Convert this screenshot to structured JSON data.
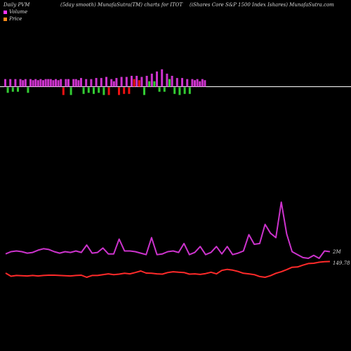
{
  "header": {
    "left": "Daily PVM",
    "smooth": "(5day smooth) MunafaSutra(TM) charts for ITOT",
    "desc": "(iShares Core S&P 1500 Index Ishares) MunafaSutra.com"
  },
  "legend": [
    {
      "label": "Volume",
      "color": "#ff33ff"
    },
    {
      "label": "Price",
      "color": "#ff8c1a"
    }
  ],
  "colors": {
    "volume_line": "#cc33cc",
    "price_line": "#ff2a2a",
    "bar_up": "#cc33cc",
    "bar_down": "#33cc33",
    "bar_red": "#ee1111",
    "baseline": "#ffffff"
  },
  "chart_data": [
    {
      "type": "bar",
      "title": "Daily PVM",
      "series": [
        {
          "values": [
            7,
            -5,
            7,
            -4,
            7,
            -4,
            7,
            6,
            7,
            -5,
            7,
            6,
            7,
            6,
            7,
            6,
            7,
            7,
            7,
            6,
            7,
            6,
            7,
            -7,
            7,
            7,
            -7,
            7,
            7,
            6,
            8,
            -6,
            7,
            -5,
            7,
            -6,
            8,
            -5,
            8,
            -7,
            9,
            -7,
            7,
            5,
            8,
            -7,
            9,
            -6,
            9,
            -6,
            10,
            7,
            10,
            6,
            9,
            -7,
            10,
            5,
            12,
            5,
            14,
            -4,
            16,
            -4,
            12,
            7,
            10,
            -6,
            8,
            -7,
            8,
            -6,
            7,
            -6,
            7,
            6,
            7,
            5,
            7,
            6
          ],
          "sign_colors": [
            "up",
            "down",
            "up",
            "down",
            "up",
            "down",
            "up",
            "up",
            "up",
            "down",
            "up",
            "up",
            "up",
            "up",
            "up",
            "up",
            "up",
            "up",
            "up",
            "up",
            "up",
            "up",
            "up",
            "red",
            "up",
            "up",
            "down",
            "up",
            "up",
            "up",
            "up",
            "down",
            "up",
            "down",
            "up",
            "down",
            "up",
            "down",
            "up",
            "down",
            "up",
            "red",
            "up",
            "up",
            "up",
            "red",
            "up",
            "red",
            "up",
            "red",
            "up",
            "red",
            "up",
            "red",
            "up",
            "down",
            "up",
            "down",
            "up",
            "down",
            "up",
            "down",
            "up",
            "down",
            "up",
            "down",
            "up",
            "down",
            "up",
            "down",
            "up",
            "down",
            "up",
            "down",
            "up",
            "up",
            "up",
            "up",
            "up",
            "up"
          ]
        }
      ]
    },
    {
      "type": "line",
      "series": [
        {
          "name": "Volume",
          "end_label": "2M",
          "values": [
            1.6,
            1.9,
            2.0,
            1.9,
            1.7,
            1.8,
            2.1,
            2.3,
            2.2,
            1.9,
            1.7,
            1.9,
            1.8,
            2.0,
            1.8,
            2.8,
            1.7,
            1.8,
            2.4,
            1.6,
            1.6,
            3.6,
            2.0,
            2.0,
            1.9,
            1.7,
            1.5,
            3.8,
            1.5,
            1.6,
            1.9,
            2.0,
            1.8,
            3.0,
            1.5,
            1.8,
            2.6,
            1.5,
            1.8,
            2.6,
            1.6,
            2.6,
            1.5,
            1.7,
            2.0,
            4.2,
            2.9,
            3.0,
            5.6,
            4.4,
            3.8,
            8.6,
            4.3,
            1.9,
            1.5,
            1.1,
            1.0,
            1.4,
            1.0,
            2.0,
            1.9
          ]
        },
        {
          "name": "Price",
          "end_label": "149.78",
          "values": [
            145.4,
            144.2,
            144.5,
            144.4,
            144.3,
            144.5,
            144.3,
            144.5,
            144.6,
            144.6,
            144.5,
            144.4,
            144.3,
            144.5,
            144.6,
            143.8,
            144.5,
            144.5,
            144.8,
            145.1,
            144.8,
            145.0,
            145.3,
            145.1,
            145.6,
            146.2,
            145.4,
            145.3,
            145.1,
            145.0,
            145.6,
            145.9,
            145.7,
            145.6,
            145.0,
            145.1,
            144.9,
            145.2,
            145.7,
            145.1,
            146.4,
            146.8,
            146.5,
            146.0,
            145.3,
            145.1,
            144.8,
            144.1,
            143.8,
            144.4,
            145.3,
            145.9,
            146.7,
            147.6,
            147.7,
            148.4,
            149.0,
            149.1,
            149.5,
            149.7,
            149.78
          ]
        }
      ]
    }
  ]
}
